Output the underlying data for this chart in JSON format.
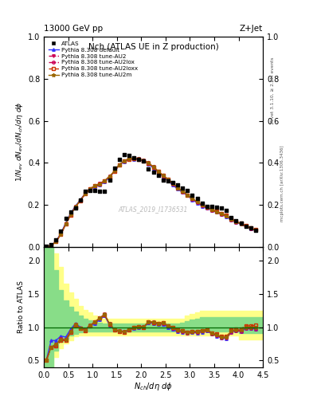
{
  "title_top": "13000 GeV pp",
  "title_right": "Z+Jet",
  "plot_title": "Nch (ATLAS UE in Z production)",
  "watermark": "ATLAS_2019_I1736531",
  "rivet_label": "Rivet 3.1.10, ≥ 2.8M events",
  "mcplots_label": "mcplots.cern.ch [arXiv:1306.3436]",
  "xlabel": "$N_{ch}/d\\eta\\ d\\phi$",
  "ylabel_main": "$1/N_{ev}\\ dN_{ev}/dN_{ch}/d\\eta\\ d\\phi$",
  "ylabel_ratio": "Ratio to ATLAS",
  "xlim": [
    0,
    4.5
  ],
  "ylim_main": [
    0,
    1.0
  ],
  "ylim_ratio": [
    0.4,
    2.2
  ],
  "atlas_x": [
    0.05,
    0.15,
    0.25,
    0.35,
    0.45,
    0.55,
    0.65,
    0.75,
    0.85,
    0.95,
    1.05,
    1.15,
    1.25,
    1.35,
    1.45,
    1.55,
    1.65,
    1.75,
    1.85,
    1.95,
    2.05,
    2.15,
    2.25,
    2.35,
    2.45,
    2.55,
    2.65,
    2.75,
    2.85,
    2.95,
    3.05,
    3.15,
    3.25,
    3.35,
    3.45,
    3.55,
    3.65,
    3.75,
    3.85,
    3.95,
    4.05,
    4.15,
    4.25,
    4.35
  ],
  "atlas_y": [
    0.002,
    0.01,
    0.035,
    0.075,
    0.135,
    0.165,
    0.185,
    0.225,
    0.265,
    0.27,
    0.27,
    0.265,
    0.265,
    0.32,
    0.375,
    0.415,
    0.44,
    0.435,
    0.425,
    0.415,
    0.41,
    0.37,
    0.355,
    0.34,
    0.32,
    0.315,
    0.305,
    0.295,
    0.28,
    0.27,
    0.245,
    0.23,
    0.21,
    0.195,
    0.195,
    0.19,
    0.185,
    0.175,
    0.14,
    0.125,
    0.115,
    0.1,
    0.09,
    0.08
  ],
  "default_x": [
    0.05,
    0.15,
    0.25,
    0.35,
    0.45,
    0.55,
    0.65,
    0.75,
    0.85,
    0.95,
    1.05,
    1.15,
    1.25,
    1.35,
    1.45,
    1.55,
    1.65,
    1.75,
    1.85,
    1.95,
    2.05,
    2.15,
    2.25,
    2.35,
    2.45,
    2.55,
    2.65,
    2.75,
    2.85,
    2.95,
    3.05,
    3.15,
    3.25,
    3.35,
    3.45,
    3.55,
    3.65,
    3.75,
    3.85,
    3.95,
    4.05,
    4.15,
    4.25,
    4.35
  ],
  "default_y": [
    0.001,
    0.008,
    0.028,
    0.065,
    0.115,
    0.16,
    0.195,
    0.225,
    0.255,
    0.275,
    0.285,
    0.295,
    0.31,
    0.33,
    0.36,
    0.39,
    0.405,
    0.415,
    0.418,
    0.415,
    0.408,
    0.395,
    0.375,
    0.355,
    0.335,
    0.315,
    0.295,
    0.275,
    0.26,
    0.245,
    0.225,
    0.21,
    0.195,
    0.185,
    0.175,
    0.165,
    0.155,
    0.145,
    0.13,
    0.118,
    0.108,
    0.098,
    0.088,
    0.078
  ],
  "au2_x": [
    0.05,
    0.15,
    0.25,
    0.35,
    0.45,
    0.55,
    0.65,
    0.75,
    0.85,
    0.95,
    1.05,
    1.15,
    1.25,
    1.35,
    1.45,
    1.55,
    1.65,
    1.75,
    1.85,
    1.95,
    2.05,
    2.15,
    2.25,
    2.35,
    2.45,
    2.55,
    2.65,
    2.75,
    2.85,
    2.95,
    3.05,
    3.15,
    3.25,
    3.35,
    3.45,
    3.55,
    3.65,
    3.75,
    3.85,
    3.95,
    4.05,
    4.15,
    4.25,
    4.35
  ],
  "au2_y": [
    0.001,
    0.007,
    0.026,
    0.062,
    0.11,
    0.155,
    0.192,
    0.222,
    0.255,
    0.278,
    0.292,
    0.302,
    0.316,
    0.336,
    0.362,
    0.392,
    0.41,
    0.42,
    0.424,
    0.42,
    0.412,
    0.4,
    0.382,
    0.36,
    0.34,
    0.322,
    0.302,
    0.282,
    0.265,
    0.248,
    0.23,
    0.215,
    0.2,
    0.188,
    0.178,
    0.168,
    0.158,
    0.148,
    0.132,
    0.12,
    0.11,
    0.1,
    0.09,
    0.08
  ],
  "au2lox_x": [
    0.05,
    0.15,
    0.25,
    0.35,
    0.45,
    0.55,
    0.65,
    0.75,
    0.85,
    0.95,
    1.05,
    1.15,
    1.25,
    1.35,
    1.45,
    1.55,
    1.65,
    1.75,
    1.85,
    1.95,
    2.05,
    2.15,
    2.25,
    2.35,
    2.45,
    2.55,
    2.65,
    2.75,
    2.85,
    2.95,
    3.05,
    3.15,
    3.25,
    3.35,
    3.45,
    3.55,
    3.65,
    3.75,
    3.85,
    3.95,
    4.05,
    4.15,
    4.25,
    4.35
  ],
  "au2lox_y": [
    0.001,
    0.007,
    0.025,
    0.06,
    0.108,
    0.152,
    0.19,
    0.22,
    0.252,
    0.275,
    0.29,
    0.3,
    0.314,
    0.334,
    0.36,
    0.39,
    0.408,
    0.418,
    0.422,
    0.418,
    0.41,
    0.398,
    0.38,
    0.358,
    0.338,
    0.32,
    0.3,
    0.28,
    0.263,
    0.246,
    0.228,
    0.213,
    0.198,
    0.186,
    0.176,
    0.166,
    0.156,
    0.146,
    0.13,
    0.118,
    0.108,
    0.098,
    0.088,
    0.078
  ],
  "au2loxx_x": [
    0.05,
    0.15,
    0.25,
    0.35,
    0.45,
    0.55,
    0.65,
    0.75,
    0.85,
    0.95,
    1.05,
    1.15,
    1.25,
    1.35,
    1.45,
    1.55,
    1.65,
    1.75,
    1.85,
    1.95,
    2.05,
    2.15,
    2.25,
    2.35,
    2.45,
    2.55,
    2.65,
    2.75,
    2.85,
    2.95,
    3.05,
    3.15,
    3.25,
    3.35,
    3.45,
    3.55,
    3.65,
    3.75,
    3.85,
    3.95,
    4.05,
    4.15,
    4.25,
    4.35
  ],
  "au2loxx_y": [
    0.001,
    0.007,
    0.025,
    0.06,
    0.108,
    0.152,
    0.19,
    0.22,
    0.252,
    0.275,
    0.29,
    0.3,
    0.314,
    0.334,
    0.36,
    0.39,
    0.408,
    0.418,
    0.422,
    0.418,
    0.41,
    0.398,
    0.38,
    0.36,
    0.34,
    0.322,
    0.302,
    0.282,
    0.265,
    0.248,
    0.23,
    0.215,
    0.2,
    0.188,
    0.178,
    0.17,
    0.16,
    0.15,
    0.134,
    0.122,
    0.112,
    0.102,
    0.092,
    0.082
  ],
  "au2m_x": [
    0.05,
    0.15,
    0.25,
    0.35,
    0.45,
    0.55,
    0.65,
    0.75,
    0.85,
    0.95,
    1.05,
    1.15,
    1.25,
    1.35,
    1.45,
    1.55,
    1.65,
    1.75,
    1.85,
    1.95,
    2.05,
    2.15,
    2.25,
    2.35,
    2.45,
    2.55,
    2.65,
    2.75,
    2.85,
    2.95,
    3.05,
    3.15,
    3.25,
    3.35,
    3.45,
    3.55,
    3.65,
    3.75,
    3.85,
    3.95,
    4.05,
    4.15,
    4.25,
    4.35
  ],
  "au2m_y": [
    0.001,
    0.007,
    0.026,
    0.061,
    0.11,
    0.154,
    0.192,
    0.222,
    0.254,
    0.277,
    0.291,
    0.301,
    0.316,
    0.336,
    0.362,
    0.392,
    0.41,
    0.42,
    0.424,
    0.42,
    0.412,
    0.4,
    0.382,
    0.36,
    0.34,
    0.322,
    0.302,
    0.282,
    0.265,
    0.248,
    0.23,
    0.215,
    0.2,
    0.188,
    0.178,
    0.168,
    0.158,
    0.148,
    0.132,
    0.12,
    0.11,
    0.1,
    0.09,
    0.08
  ],
  "yellow_band_x": [
    0.0,
    0.1,
    0.2,
    0.3,
    0.4,
    0.5,
    0.6,
    0.7,
    0.8,
    0.9,
    1.0,
    1.1,
    1.2,
    1.3,
    1.4,
    1.5,
    1.6,
    1.7,
    1.8,
    1.9,
    2.0,
    2.1,
    2.2,
    2.3,
    2.4,
    2.5,
    2.6,
    2.7,
    2.8,
    2.9,
    3.0,
    3.1,
    3.2,
    3.3,
    3.4,
    3.5,
    3.6,
    3.7,
    3.8,
    3.9,
    4.0,
    4.1,
    4.2,
    4.3,
    4.4,
    4.5
  ],
  "yellow_band_low": [
    0.4,
    0.4,
    0.55,
    0.68,
    0.75,
    0.8,
    0.86,
    0.88,
    0.88,
    0.88,
    0.88,
    0.88,
    0.88,
    0.88,
    0.88,
    0.88,
    0.88,
    0.88,
    0.88,
    0.88,
    0.88,
    0.88,
    0.88,
    0.88,
    0.88,
    0.88,
    0.88,
    0.88,
    0.88,
    0.88,
    0.88,
    0.88,
    0.88,
    0.88,
    0.88,
    0.88,
    0.88,
    0.88,
    0.88,
    0.88,
    0.82,
    0.82,
    0.82,
    0.82,
    0.82,
    0.82
  ],
  "yellow_band_high": [
    2.2,
    2.2,
    2.1,
    1.9,
    1.65,
    1.52,
    1.42,
    1.32,
    1.26,
    1.22,
    1.17,
    1.14,
    1.13,
    1.13,
    1.13,
    1.13,
    1.13,
    1.13,
    1.13,
    1.13,
    1.13,
    1.13,
    1.13,
    1.13,
    1.13,
    1.13,
    1.13,
    1.13,
    1.13,
    1.17,
    1.2,
    1.22,
    1.24,
    1.24,
    1.24,
    1.24,
    1.24,
    1.24,
    1.24,
    1.24,
    1.25,
    1.25,
    1.25,
    1.25,
    1.25,
    1.25
  ],
  "green_band_x": [
    0.0,
    0.1,
    0.2,
    0.3,
    0.4,
    0.5,
    0.6,
    0.7,
    0.8,
    0.9,
    1.0,
    1.1,
    1.2,
    1.3,
    1.4,
    1.5,
    1.6,
    1.7,
    1.8,
    1.9,
    2.0,
    2.1,
    2.2,
    2.3,
    2.4,
    2.5,
    2.6,
    2.7,
    2.8,
    2.9,
    3.0,
    3.1,
    3.2,
    3.3,
    3.4,
    3.5,
    3.6,
    3.7,
    3.8,
    3.9,
    4.0,
    4.1,
    4.2,
    4.3,
    4.4,
    4.5
  ],
  "green_band_low": [
    0.4,
    0.4,
    0.65,
    0.78,
    0.83,
    0.87,
    0.9,
    0.92,
    0.93,
    0.93,
    0.94,
    0.94,
    0.94,
    0.94,
    0.94,
    0.94,
    0.94,
    0.94,
    0.94,
    0.94,
    0.94,
    0.94,
    0.94,
    0.94,
    0.94,
    0.94,
    0.94,
    0.94,
    0.94,
    0.94,
    0.94,
    0.94,
    0.94,
    0.94,
    0.94,
    0.94,
    0.94,
    0.94,
    0.94,
    0.94,
    0.91,
    0.91,
    0.91,
    0.91,
    0.91,
    0.91
  ],
  "green_band_high": [
    2.2,
    2.2,
    1.85,
    1.55,
    1.4,
    1.3,
    1.23,
    1.17,
    1.13,
    1.1,
    1.08,
    1.07,
    1.06,
    1.06,
    1.06,
    1.06,
    1.06,
    1.06,
    1.06,
    1.06,
    1.06,
    1.06,
    1.06,
    1.06,
    1.06,
    1.06,
    1.06,
    1.06,
    1.07,
    1.09,
    1.11,
    1.13,
    1.15,
    1.15,
    1.15,
    1.15,
    1.15,
    1.15,
    1.15,
    1.15,
    1.15,
    1.15,
    1.15,
    1.15,
    1.15,
    1.15
  ],
  "color_default": "#3333ff",
  "color_au2": "#cc0055",
  "color_au2lox": "#cc0055",
  "color_au2loxx": "#cc3300",
  "color_au2m": "#996600",
  "ratio_yticks": [
    0.5,
    1.0,
    1.5,
    2.0
  ],
  "main_yticks": [
    0.0,
    0.2,
    0.4,
    0.6,
    0.8,
    1.0
  ]
}
